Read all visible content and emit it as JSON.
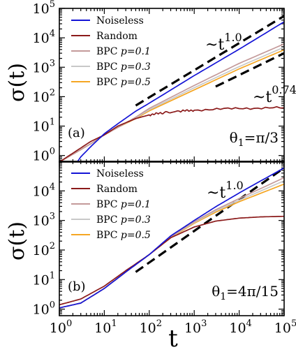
{
  "figure": {
    "xlabel": "t",
    "ylabel": "σ(t)"
  },
  "colors": {
    "Noiseless": "#1414d6",
    "Random": "#8b1a1a",
    "BPC p=0.1": "#c49a9a",
    "BPC p=0.3": "#c8c8c8",
    "BPC p=0.5": "#f5a623",
    "guide": "#000000"
  },
  "chart_data": [
    {
      "type": "line",
      "panel_label": "(a)",
      "annotation": "θ1=π/3",
      "annotation_parts": {
        "pre": "θ",
        "sub": "1",
        "post": "=π/3"
      },
      "xscale": "log",
      "yscale": "log",
      "xlim": [
        1,
        100000
      ],
      "ylim": [
        0.6,
        100000
      ],
      "x_ticks": [
        1,
        10,
        100,
        1000,
        10000,
        100000
      ],
      "y_ticks": [
        1,
        10,
        100,
        1000,
        10000,
        100000
      ],
      "y_tick_labels": [
        {
          "base": "10",
          "exp": "0"
        },
        {
          "base": "10",
          "exp": "1"
        },
        {
          "base": "10",
          "exp": "2"
        },
        {
          "base": "10",
          "exp": "3"
        },
        {
          "base": "10",
          "exp": "4"
        },
        {
          "base": "10",
          "exp": "5"
        }
      ],
      "legend": {
        "position": "top-left",
        "entries": [
          {
            "pre": "Noiseless",
            "italic": ""
          },
          {
            "pre": "Random",
            "italic": ""
          },
          {
            "pre": "BPC ",
            "italic": "p=0.1"
          },
          {
            "pre": "BPC ",
            "italic": "p=0.3"
          },
          {
            "pre": "BPC ",
            "italic": "p=0.5"
          }
        ]
      },
      "series": [
        {
          "name": "Noiseless",
          "x": [
            2.5,
            3,
            5,
            10,
            20,
            50,
            100,
            1000,
            10000,
            100000
          ],
          "y": [
            0.6,
            0.9,
            2.0,
            5.5,
            12,
            32,
            60,
            520,
            4100,
            35000
          ]
        },
        {
          "name": "Random",
          "x": [
            1,
            2,
            5,
            10,
            20,
            50,
            100,
            200,
            500,
            1000,
            10000,
            100000
          ],
          "y": [
            0.6,
            1.2,
            3,
            5,
            10,
            18,
            24,
            28,
            32,
            35,
            40,
            42
          ],
          "noise": true
        },
        {
          "name": "BPC p=0.1",
          "x": [
            1,
            2,
            5,
            10,
            20,
            50,
            100,
            1000,
            10000,
            100000
          ],
          "y": [
            0.6,
            1.1,
            2.5,
            5,
            9,
            20,
            40,
            240,
            1350,
            6200
          ]
        },
        {
          "name": "BPC p=0.3",
          "x": [
            1,
            2,
            5,
            10,
            20,
            50,
            100,
            1000,
            10000,
            100000
          ],
          "y": [
            0.6,
            1.1,
            2.5,
            5,
            9,
            19,
            36,
            200,
            1050,
            4800
          ]
        },
        {
          "name": "BPC p=0.5",
          "x": [
            1,
            2,
            5,
            10,
            20,
            50,
            100,
            1000,
            10000,
            100000
          ],
          "y": [
            0.6,
            1.1,
            2.5,
            5,
            9,
            18,
            33,
            170,
            880,
            3900
          ]
        }
      ],
      "guides": [
        {
          "label_base": "~t",
          "label_exp": "1.0",
          "x": [
            50,
            100000
          ],
          "y": [
            50,
            55000
          ]
        },
        {
          "label_base": "~t",
          "label_exp": "0.74",
          "x": [
            3000,
            100000
          ],
          "y": [
            220,
            3000
          ]
        }
      ]
    },
    {
      "type": "line",
      "panel_label": "(b)",
      "annotation": "θ1=4π/15",
      "annotation_parts": {
        "pre": "θ",
        "sub": "1",
        "post": "=4π/15"
      },
      "xscale": "log",
      "yscale": "log",
      "xlim": [
        1,
        100000
      ],
      "ylim": [
        0.6,
        100000
      ],
      "x_ticks": [
        1,
        10,
        100,
        1000,
        10000,
        100000
      ],
      "x_tick_labels": [
        {
          "base": "10",
          "exp": "0"
        },
        {
          "base": "10",
          "exp": "1"
        },
        {
          "base": "10",
          "exp": "2"
        },
        {
          "base": "10",
          "exp": "3"
        },
        {
          "base": "10",
          "exp": "4"
        },
        {
          "base": "10",
          "exp": "5"
        }
      ],
      "y_ticks": [
        1,
        10,
        100,
        1000,
        10000
      ],
      "y_tick_labels": [
        {
          "base": "10",
          "exp": "0"
        },
        {
          "base": "10",
          "exp": "1"
        },
        {
          "base": "10",
          "exp": "2"
        },
        {
          "base": "10",
          "exp": "3"
        },
        {
          "base": "10",
          "exp": "4"
        }
      ],
      "legend": {
        "position": "top-left",
        "entries": [
          {
            "pre": "Noiseless",
            "italic": ""
          },
          {
            "pre": "Random",
            "italic": ""
          },
          {
            "pre": "BPC ",
            "italic": "p=0.1"
          },
          {
            "pre": "BPC ",
            "italic": "p=0.3"
          },
          {
            "pre": "BPC ",
            "italic": "p=0.5"
          }
        ]
      },
      "series": [
        {
          "name": "Noiseless",
          "x": [
            1,
            3,
            10,
            30,
            100,
            300,
            1000,
            3000,
            10000,
            100000
          ],
          "y": [
            1.1,
            1.6,
            5,
            18,
            70,
            300,
            1000,
            2900,
            8500,
            60000
          ]
        },
        {
          "name": "Random",
          "x": [
            1,
            3,
            10,
            30,
            100,
            300,
            1000,
            3000,
            10000,
            30000,
            100000
          ],
          "y": [
            1.4,
            2.2,
            6,
            20,
            70,
            260,
            600,
            950,
            1200,
            1320,
            1380
          ]
        },
        {
          "name": "BPC p=0.1",
          "x": [
            1,
            3,
            10,
            30,
            100,
            300,
            1000,
            3000,
            10000,
            100000
          ],
          "y": [
            1.1,
            1.6,
            5,
            18,
            70,
            280,
            900,
            2300,
            5500,
            28000
          ]
        },
        {
          "name": "BPC p=0.3",
          "x": [
            1,
            3,
            10,
            30,
            100,
            300,
            1000,
            3000,
            10000,
            100000
          ],
          "y": [
            1.1,
            1.6,
            5,
            18,
            70,
            270,
            850,
            2100,
            4800,
            22000
          ]
        },
        {
          "name": "BPC p=0.5",
          "x": [
            1,
            3,
            10,
            30,
            100,
            300,
            1000,
            3000,
            10000,
            100000
          ],
          "y": [
            1.1,
            1.6,
            5,
            18,
            70,
            260,
            800,
            1900,
            4300,
            17000
          ]
        }
      ],
      "guides": [
        {
          "label_base": "~t",
          "label_exp": "1.0",
          "x": [
            50,
            100000
          ],
          "y": [
            18,
            60000
          ]
        }
      ]
    }
  ]
}
